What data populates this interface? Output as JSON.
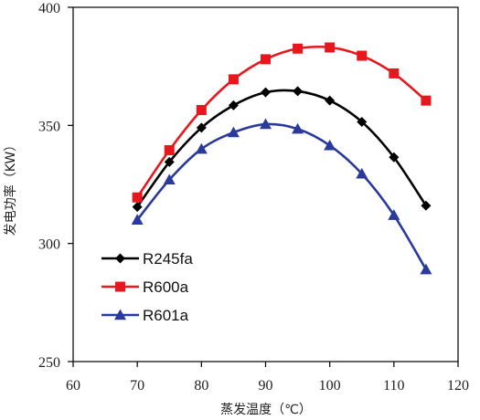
{
  "chart_data": {
    "type": "line",
    "xlabel": "蒸发温度（℃）",
    "ylabel": "发电功率（KW）",
    "xlim": [
      60,
      120
    ],
    "ylim": [
      250,
      400
    ],
    "xticks": [
      60,
      70,
      80,
      90,
      100,
      110,
      120
    ],
    "yticks": [
      250,
      300,
      350,
      400
    ],
    "grid": false,
    "legend_position": "lower-left",
    "x": [
      70,
      75,
      80,
      85,
      90,
      95,
      100,
      105,
      110,
      115
    ],
    "series": [
      {
        "name": "R245fa",
        "color": "#000000",
        "marker": "diamond",
        "values": [
          315.5,
          334.5,
          349,
          358.5,
          364,
          364.5,
          360.5,
          351.5,
          336.5,
          316
        ]
      },
      {
        "name": "R600a",
        "color": "#e8171d",
        "marker": "square",
        "values": [
          319.5,
          339.5,
          356.5,
          369.5,
          378,
          382.5,
          383,
          379.5,
          372,
          360.5
        ]
      },
      {
        "name": "R601a",
        "color": "#2a3a9c",
        "marker": "triangle",
        "values": [
          310,
          327,
          340,
          347,
          350.5,
          348.5,
          341.5,
          329.5,
          312,
          289
        ]
      }
    ]
  }
}
